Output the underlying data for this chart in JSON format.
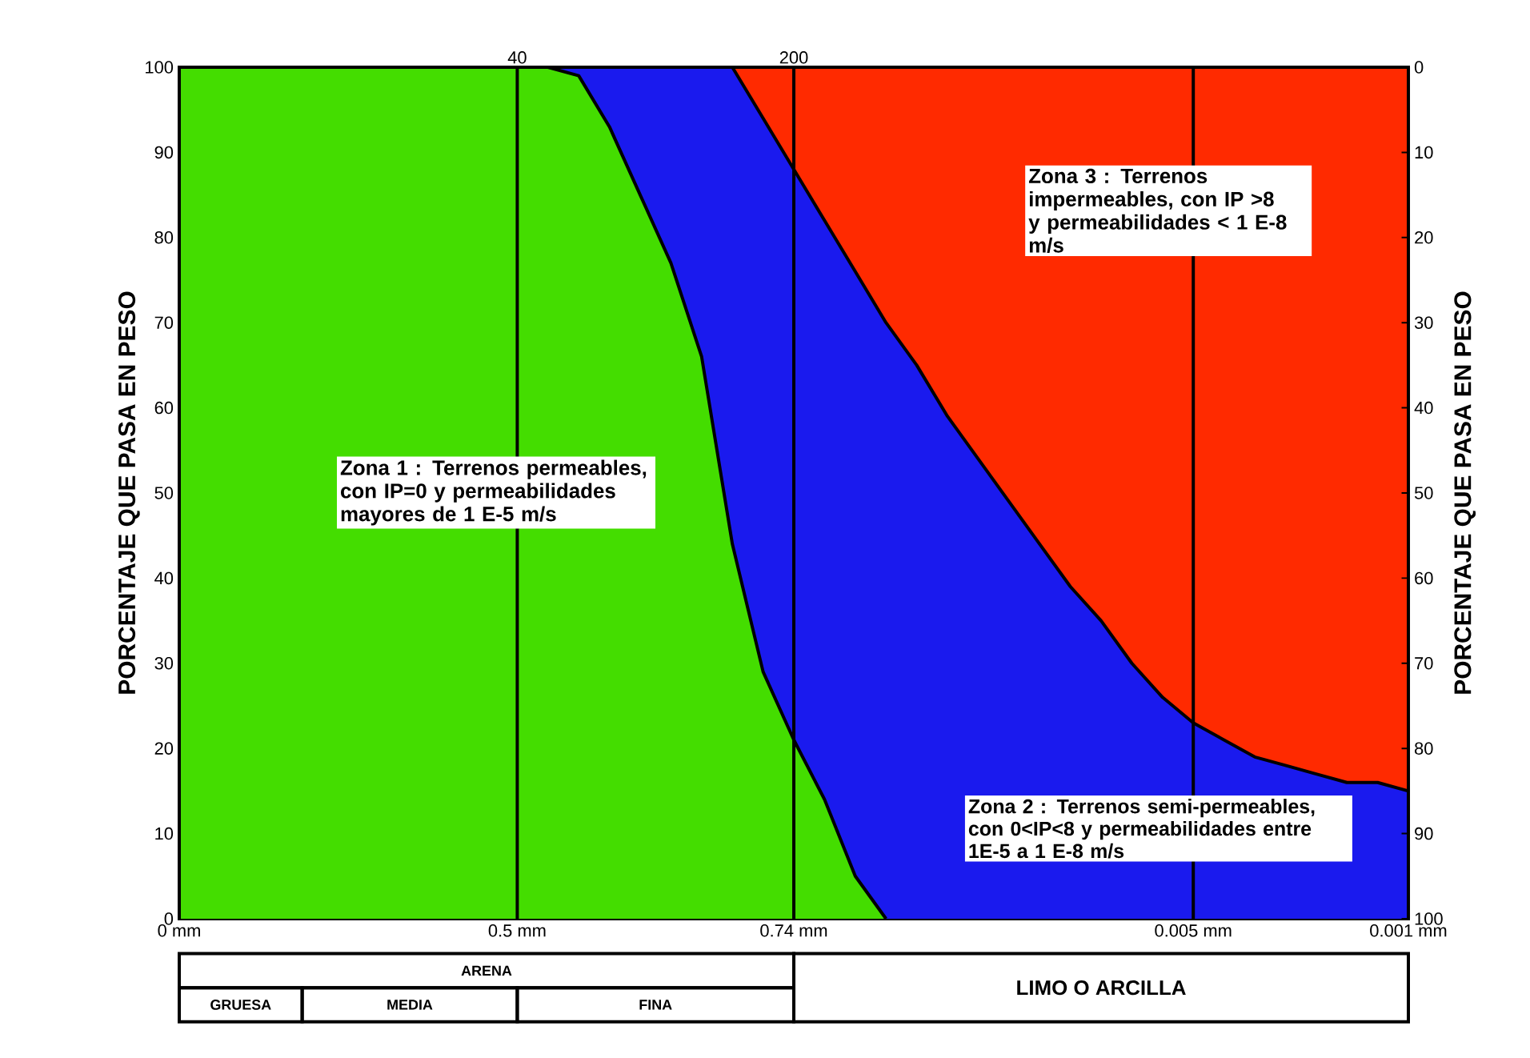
{
  "chart_data": {
    "type": "area",
    "stacked": true,
    "ylabel": "PORCENTAJE QUE PASA EN PESO",
    "y2label": "PORCENTAJE QUE PASA EN PESO",
    "categories": [
      "0 mm",
      null,
      null,
      null,
      null,
      null,
      null,
      null,
      null,
      null,
      null,
      "0.5 mm",
      null,
      null,
      null,
      null,
      null,
      null,
      null,
      null,
      "0.74 mm",
      null,
      null,
      null,
      null,
      null,
      null,
      null,
      null,
      null,
      null,
      null,
      null,
      "0.005 mm",
      null,
      null,
      null,
      null,
      null,
      null,
      "0.001 mm"
    ],
    "ylim": [
      0,
      100
    ],
    "y2lim": [
      100,
      0
    ],
    "yticks": [
      0,
      10,
      20,
      30,
      40,
      50,
      60,
      70,
      80,
      90,
      100
    ],
    "y2ticks": [
      0,
      10,
      20,
      30,
      40,
      50,
      60,
      70,
      80,
      90,
      100
    ],
    "series": [
      {
        "color": "#44dd00",
        "values": [
          100,
          100,
          100,
          100,
          100,
          100,
          100,
          100,
          100,
          100,
          100,
          100,
          100,
          99,
          93,
          85,
          77,
          66,
          44,
          29,
          21,
          14,
          5,
          0,
          null,
          null,
          null,
          null,
          null,
          null,
          null,
          null,
          null,
          null,
          null,
          null,
          null,
          null,
          null,
          null,
          null
        ]
      },
      {
        "color": "#1a1aee",
        "values": [
          null,
          null,
          null,
          null,
          null,
          null,
          null,
          null,
          null,
          null,
          null,
          null,
          0,
          1,
          7,
          15,
          23,
          34,
          56,
          65,
          67,
          68,
          71,
          70,
          65,
          59,
          54,
          49,
          44,
          39,
          35,
          30,
          26,
          23,
          21,
          19,
          18,
          17,
          16,
          16,
          15
        ]
      },
      {
        "color": "#ff2a00",
        "values": [
          null,
          null,
          null,
          null,
          null,
          null,
          null,
          null,
          null,
          null,
          null,
          null,
          null,
          null,
          null,
          null,
          null,
          null,
          0,
          6,
          12,
          18,
          24,
          30,
          35,
          41,
          46,
          51,
          56,
          61,
          65,
          70,
          74,
          77,
          79,
          81,
          82,
          83,
          84,
          84,
          85
        ]
      }
    ],
    "grid": "x",
    "annotations": [
      "Zona 1 : Terrenos permeables, con IP=0 y permeabilidades mayores de 1 E-5 m/s",
      "Zona 2 : Terrenos semi-permeables, con 0<IP<8 y permeabilidades entre 1E-5 a 1 E-8 m/s",
      "Zona 3 : Terrenos impermeables, con IP >8 y permeabilidades < 1 E-8 m/s",
      "ARENA",
      "GRUESA",
      "MEDIA",
      "FINA",
      "LIMO O ARCILLA",
      "40",
      "200"
    ]
  }
}
